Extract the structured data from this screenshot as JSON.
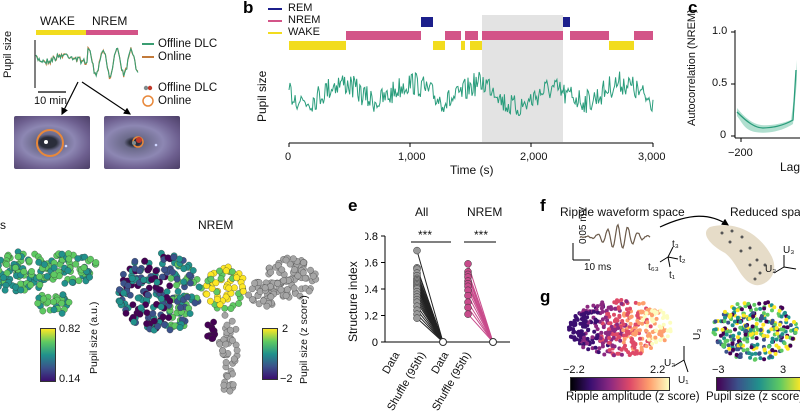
{
  "panel_letters": {
    "b": "b",
    "c": "c",
    "e": "e",
    "f": "f",
    "g": "g"
  },
  "panel_a": {
    "wake_label": "WAKE",
    "nrem_label": "NREM",
    "y_label": "Pupil size",
    "scale_bar": "10 min",
    "legend_lines": [
      {
        "name": "Offline DLC",
        "color": "#3a9d72"
      },
      {
        "name": "Online",
        "color": "#c27a3a"
      }
    ],
    "legend_markers": [
      {
        "name": "Offline DLC",
        "color": "#c0392b"
      },
      {
        "name": "Online",
        "color": "#e8883a"
      }
    ],
    "wake_color": "#f2dc1e",
    "nrem_color": "#d35488"
  },
  "panel_b": {
    "legend": [
      {
        "name": "REM",
        "color": "#1c1f8c"
      },
      {
        "name": "NREM",
        "color": "#d35488"
      },
      {
        "name": "WAKE",
        "color": "#f2dc1e"
      }
    ],
    "y_label": "Pupil size",
    "x_label": "Time (s)",
    "x_ticks": [
      "0",
      "1,000",
      "2,000",
      "3,000"
    ],
    "trace_color": "#2a9d7c",
    "shade_color": "#e3e3e3"
  },
  "panel_c": {
    "y_label": "Autocorrelation (NREM)",
    "y_ticks": [
      "1.0",
      "0.5",
      "0"
    ],
    "x_ticks": [
      "−200"
    ],
    "x_label_partial": "Lag"
  },
  "panel_d": {
    "left_label": "s",
    "title": "NREM",
    "colorbar1": {
      "max": "0.82",
      "min": "0.14",
      "label": "Pupil size (a.u.)"
    },
    "colorbar2": {
      "max": "2",
      "min": "−2",
      "label": "Pupil size (z score)"
    }
  },
  "panel_e": {
    "group_labels": [
      "All",
      "NREM"
    ],
    "significance": [
      "***",
      "***"
    ],
    "y_label": "Structure index",
    "y_ticks": [
      "0.8",
      "0.6",
      "0.4",
      "0.2",
      "0"
    ],
    "x_labels": [
      "Data",
      "Shuffle (95th)",
      "Data",
      "Shuffle (95th)"
    ],
    "chart_data": {
      "type": "scatter",
      "ylabel": "Structure index",
      "ylim": [
        0,
        0.8
      ],
      "series": [
        {
          "name": "All",
          "data": [
            0.69,
            0.56,
            0.55,
            0.52,
            0.5,
            0.48,
            0.47,
            0.46,
            0.45,
            0.44,
            0.43,
            0.42,
            0.41,
            0.4,
            0.38,
            0.36,
            0.34,
            0.32,
            0.3,
            0.27,
            0.24,
            0.21,
            0.18
          ],
          "shuffle": 0.0,
          "color": "#999999"
        },
        {
          "name": "NREM",
          "data": [
            0.59,
            0.53,
            0.51,
            0.49,
            0.46,
            0.44,
            0.42,
            0.39,
            0.35,
            0.3,
            0.26,
            0.21
          ],
          "shuffle": 0.0,
          "color": "#c84b8b"
        }
      ]
    }
  },
  "panel_f": {
    "title_left": "Ripple waveform space",
    "title_right": "Reduced spac",
    "scale_mv": "0.05 mV",
    "scale_ms": "10 ms",
    "axes_left": [
      "t₃",
      "t₂",
      "t₁",
      "t₆₃"
    ],
    "axes_right": [
      "U₃",
      "U₂"
    ]
  },
  "panel_g": {
    "cbar_left": {
      "min": "−2.2",
      "max": "2.2",
      "label": "Ripple amplitude (z score)"
    },
    "cbar_right": {
      "min": "−3",
      "max": "3",
      "label": "Pupil size (z score)"
    },
    "axes": [
      "U₃",
      "U₂",
      "U₁"
    ]
  }
}
